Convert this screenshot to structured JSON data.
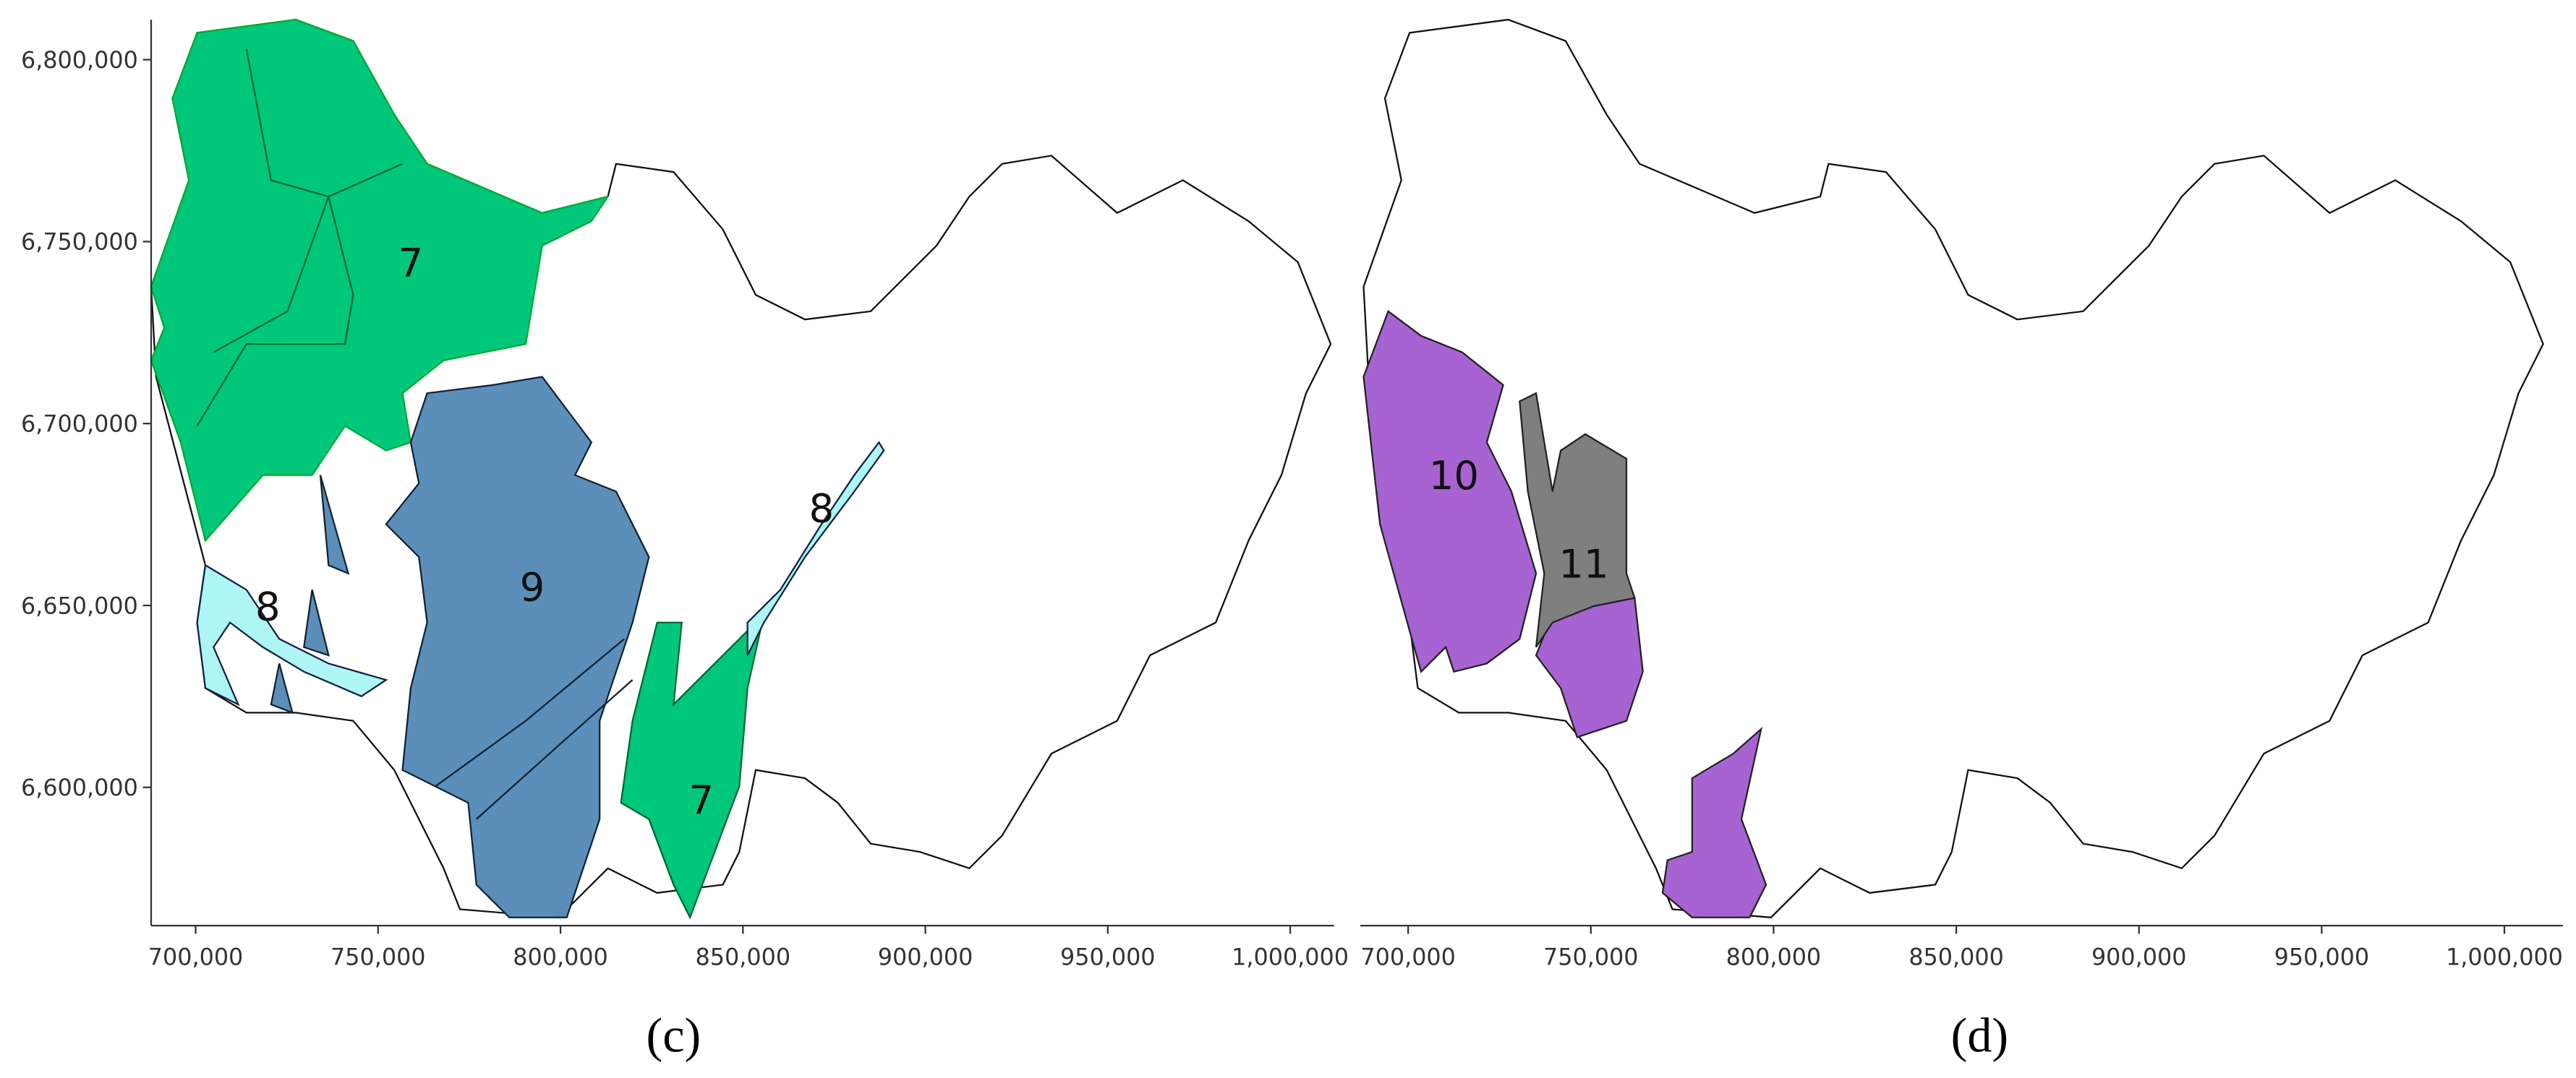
{
  "panels": [
    {
      "caption": "(c)",
      "xlim": [
        687800,
        1012000
      ],
      "ylim": [
        6562000,
        6811000
      ],
      "xticks": [
        {
          "value": 700000,
          "label": "700,000"
        },
        {
          "value": 750000,
          "label": "750,000"
        },
        {
          "value": 800000,
          "label": "800,000"
        },
        {
          "value": 850000,
          "label": "850,000"
        },
        {
          "value": 900000,
          "label": "900,000"
        },
        {
          "value": 950000,
          "label": "950,000"
        },
        {
          "value": 1000000,
          "label": "1,000,000"
        }
      ],
      "yticks": [
        {
          "value": 6600000,
          "label": "6,600,000"
        },
        {
          "value": 6650000,
          "label": "6,650,000"
        },
        {
          "value": 6700000,
          "label": "6,700,000"
        },
        {
          "value": 6750000,
          "label": "6,750,000"
        },
        {
          "value": 6800000,
          "label": "6,800,000"
        }
      ],
      "regions": [
        "7",
        "9",
        "8",
        "8",
        "7"
      ]
    },
    {
      "caption": "(d)",
      "xlim": [
        686900,
        1016000
      ],
      "xticks": [
        {
          "value": 700000,
          "label": "700,000"
        },
        {
          "value": 750000,
          "label": "750,000"
        },
        {
          "value": 800000,
          "label": "800,000"
        },
        {
          "value": 850000,
          "label": "850,000"
        },
        {
          "value": 900000,
          "label": "900,000"
        },
        {
          "value": 950000,
          "label": "950,000"
        },
        {
          "value": 1000000,
          "label": "1,000,000"
        }
      ],
      "regions": [
        "10",
        "11"
      ]
    }
  ]
}
